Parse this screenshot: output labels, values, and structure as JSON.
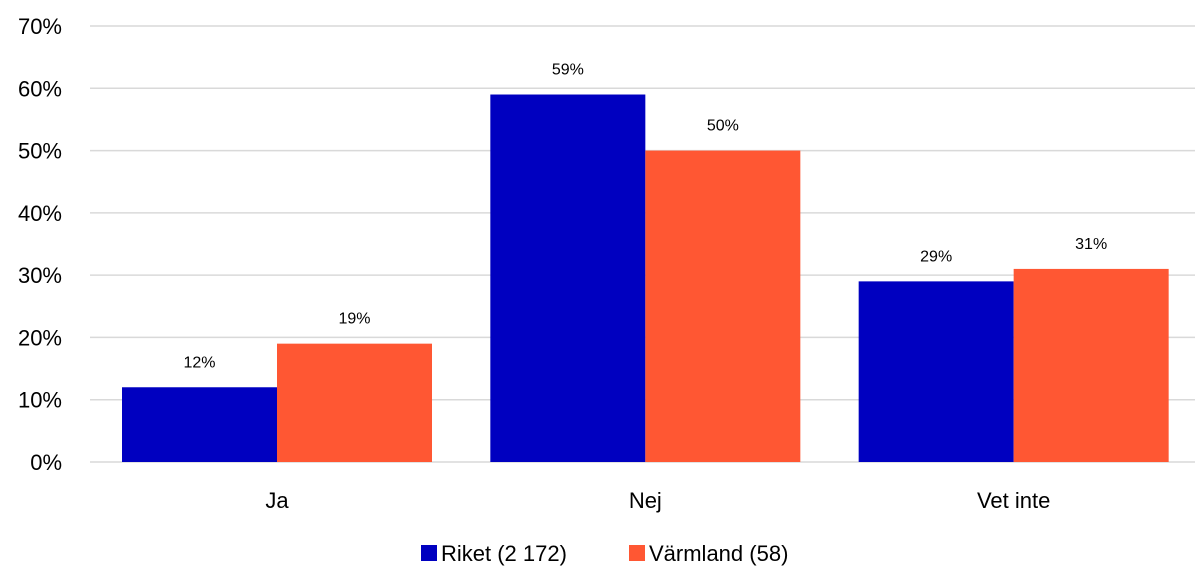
{
  "chart_data": {
    "type": "bar",
    "categories": [
      "Ja",
      "Nej",
      "Vet inte"
    ],
    "series": [
      {
        "name": "Riket (2 172)",
        "values": [
          12,
          59,
          29
        ],
        "color": "#0000c0"
      },
      {
        "name": "Värmland (58)",
        "values": [
          19,
          50,
          31
        ],
        "color": "#ff5733"
      }
    ],
    "ylim": [
      0,
      70
    ],
    "yticks": [
      0,
      10,
      20,
      30,
      40,
      50,
      60,
      70
    ],
    "value_suffix": "%",
    "grid": true,
    "legend_position": "bottom",
    "title": "",
    "xlabel": "",
    "ylabel": ""
  }
}
